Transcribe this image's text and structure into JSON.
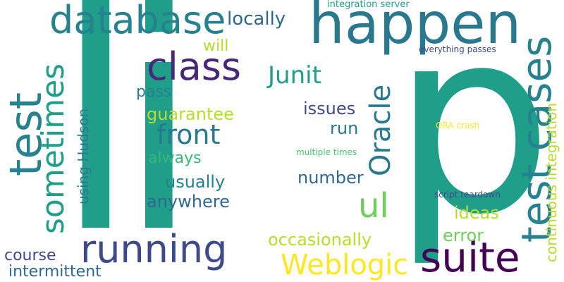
{
  "words": {
    "li": "li",
    "p": "p",
    "happen": "happen",
    "database": "database",
    "test": "test",
    "sometimes": "sometimes",
    "test_cases": "test cases",
    "class": "class",
    "running": "running",
    "suite": "suite",
    "ul": "ul",
    "weblogic": "Weblogic",
    "junit": "Junit",
    "front": "front",
    "oracle": "Oracle",
    "locally": "locally",
    "continuous_integration": "continuous integration",
    "using_hudson": "using Hudson",
    "will": "will",
    "pass": "pass",
    "guarantee": "guarantee",
    "always": "always",
    "usually": "usually",
    "anywhere": "anywhere",
    "issues": "issues",
    "run": "run",
    "number": "number",
    "ideas": "ideas",
    "error": "error",
    "occasionally": "occasionally",
    "course": "course",
    "intermittent": "intermittent",
    "integration_server": "integration server",
    "everything_passes": "everything passes",
    "ora_crash": "ORA crash",
    "multiple_times": "multiple times",
    "script_teardown": "script teardown"
  },
  "colors": {
    "teal": "#1f9e89",
    "dark_teal": "#26828e",
    "blue_teal": "#2a788e",
    "slate": "#31688e",
    "indigo": "#3e4989",
    "purple": "#482878",
    "dark_purple": "#440154",
    "green": "#35b779",
    "light_green": "#6ece58",
    "lime": "#b5de2b",
    "yellow": "#fde725",
    "mid_green": "#4ac16d"
  }
}
